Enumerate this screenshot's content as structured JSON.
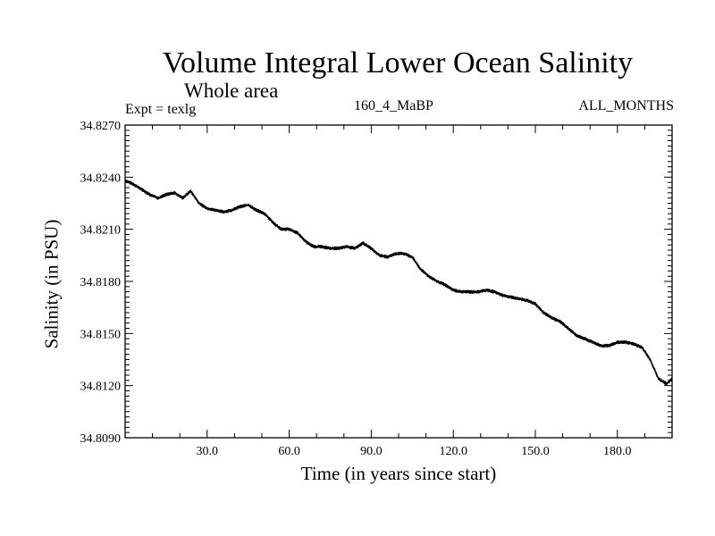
{
  "chart_data": {
    "type": "line",
    "title": "Volume Integral Lower Ocean Salinity",
    "subtitle": "Whole area",
    "annotations": {
      "left": "Expt = texlg",
      "center": "160_4_MaBP",
      "right": "ALL_MONTHS"
    },
    "xlabel": "Time (in years since start)",
    "ylabel": "Salinity (in PSU)",
    "xlim": [
      0,
      200
    ],
    "ylim": [
      34.809,
      34.827
    ],
    "xticks": [
      30,
      60,
      90,
      120,
      150,
      180
    ],
    "xtick_labels": [
      "30.0",
      "60.0",
      "90.0",
      "120.0",
      "150.0",
      "180.0"
    ],
    "yticks": [
      34.809,
      34.812,
      34.815,
      34.818,
      34.821,
      34.824,
      34.827
    ],
    "ytick_labels": [
      "34.8090",
      "34.8120",
      "34.8150",
      "34.8180",
      "34.8210",
      "34.8240",
      "34.8270"
    ],
    "series": [
      {
        "name": "salinity",
        "x": [
          0,
          3,
          6,
          9,
          12,
          15,
          18,
          21,
          24,
          27,
          30,
          33,
          36,
          39,
          42,
          45,
          48,
          51,
          54,
          57,
          60,
          63,
          66,
          69,
          72,
          75,
          78,
          81,
          84,
          87,
          90,
          93,
          96,
          99,
          102,
          105,
          108,
          111,
          114,
          117,
          120,
          123,
          126,
          129,
          132,
          135,
          138,
          141,
          144,
          147,
          150,
          153,
          156,
          159,
          162,
          165,
          168,
          171,
          174,
          177,
          180,
          183,
          186,
          189,
          192,
          195,
          198,
          200
        ],
        "values": [
          34.8238,
          34.8236,
          34.8233,
          34.823,
          34.8228,
          34.823,
          34.8231,
          34.8228,
          34.8232,
          34.8225,
          34.8222,
          34.8221,
          34.822,
          34.8221,
          34.8223,
          34.8224,
          34.8221,
          34.8219,
          34.8214,
          34.821,
          34.821,
          34.8208,
          34.8203,
          34.82,
          34.82,
          34.8199,
          34.8199,
          34.82,
          34.8199,
          34.8202,
          34.8199,
          34.8195,
          34.8194,
          34.8196,
          34.8196,
          34.8194,
          34.8187,
          34.8183,
          34.818,
          34.8178,
          34.8175,
          34.8174,
          34.8174,
          34.8174,
          34.8175,
          34.8174,
          34.8172,
          34.8171,
          34.817,
          34.8169,
          34.8167,
          34.8162,
          34.8159,
          34.8157,
          34.8153,
          34.8149,
          34.8147,
          34.8145,
          34.8143,
          34.8143,
          34.8145,
          34.8145,
          34.8144,
          34.8142,
          34.8135,
          34.8124,
          34.8121,
          34.8124
        ]
      }
    ]
  }
}
